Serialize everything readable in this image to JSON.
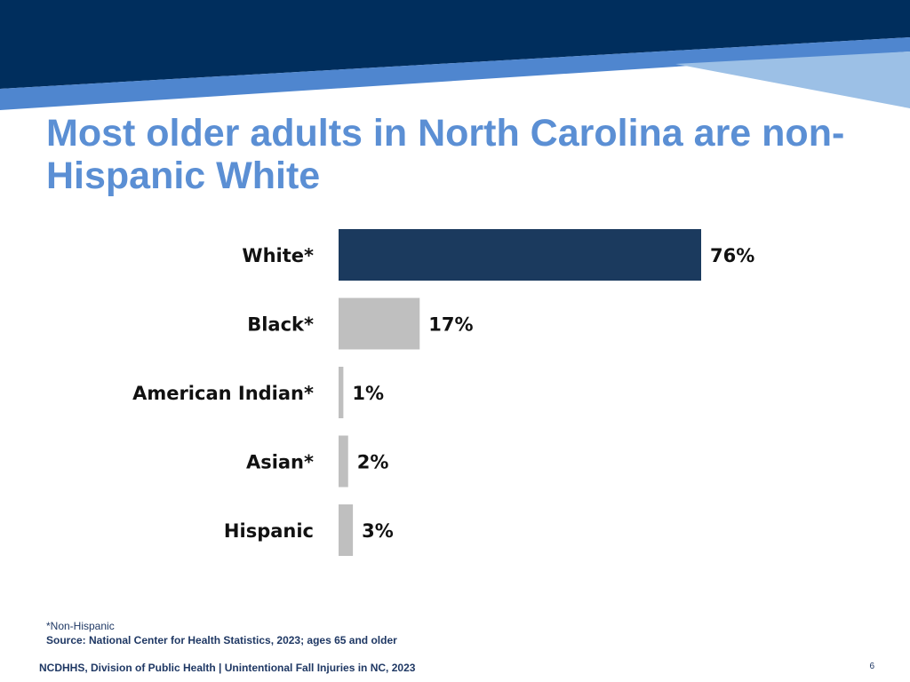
{
  "slide": {
    "title": "Most older adults in North Carolina are non-Hispanic White",
    "footnote": "*Non-Hispanic",
    "source": "Source: National Center for Health Statistics, 2023; ages 65 and older",
    "footer": "NCDHHS, Division of Public Health | Unintentional Fall Injuries in NC, 2023",
    "page_number": "6"
  },
  "colors": {
    "banner_dark": "#002e5d",
    "banner_mid": "#4f86cf",
    "banner_light": "#9cc0e6",
    "title": "#5b8fd4",
    "bar_highlight": "#1b3a5e",
    "bar_default": "#bfbfbf"
  },
  "chart_data": {
    "type": "bar",
    "orientation": "horizontal",
    "categories": [
      "White*",
      "Black*",
      "American Indian*",
      "Asian*",
      "Hispanic"
    ],
    "values": [
      76,
      17,
      1,
      2,
      3
    ],
    "value_labels": [
      "76%",
      "17%",
      "1%",
      "2%",
      "3%"
    ],
    "highlight_index": 0,
    "xlim": [
      0,
      100
    ],
    "grid": false,
    "legend": "none"
  }
}
